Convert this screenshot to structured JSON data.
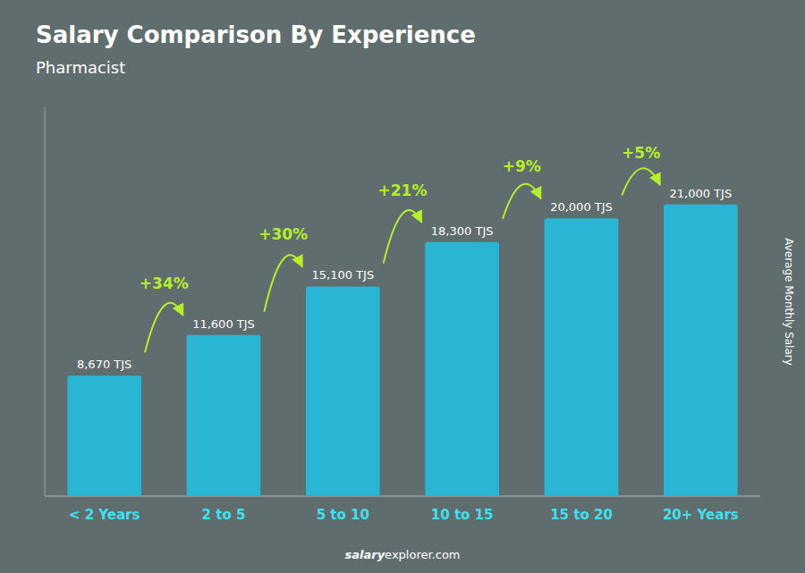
{
  "chart_data": {
    "type": "bar",
    "title": "Salary Comparison By Experience",
    "subtitle": "Pharmacist",
    "y_label": "Average Monthly Salary",
    "categories": [
      "< 2 Years",
      "2 to 5",
      "5 to 10",
      "10 to 15",
      "15 to 20",
      "20+ Years"
    ],
    "values": [
      8670,
      11600,
      15100,
      18300,
      20000,
      21000
    ],
    "value_labels": [
      "8,670 TJS",
      "11,600 TJS",
      "15,100 TJS",
      "18,300 TJS",
      "20,000 TJS",
      "21,000 TJS"
    ],
    "data_labels": true,
    "annotations": [
      "+34%",
      "+30%",
      "+21%",
      "+9%",
      "+5%"
    ],
    "source": [
      "salary",
      "explorer.com"
    ],
    "color": "#29b6d4",
    "ylim": [
      0,
      28000
    ],
    "tick_labels": "x",
    "grid": false
  }
}
